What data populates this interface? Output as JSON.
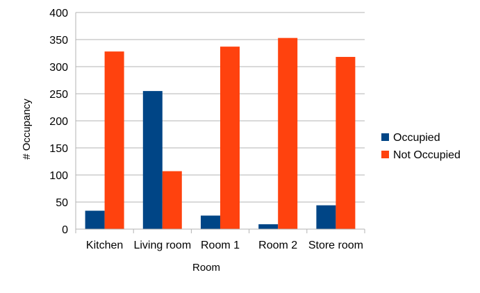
{
  "chart_data": {
    "type": "bar",
    "categories": [
      "Kitchen",
      "Living room",
      "Room 1",
      "Room 2",
      "Store room"
    ],
    "series": [
      {
        "name": "Occupied",
        "color": "#004586",
        "values": [
          34,
          255,
          25,
          9,
          44
        ]
      },
      {
        "name": "Not Occupied",
        "color": "#ff420e",
        "values": [
          328,
          107,
          337,
          353,
          318
        ]
      }
    ],
    "xlabel": "Room",
    "ylabel": "# Occupancy",
    "ylim": [
      0,
      400
    ],
    "yticks": [
      0,
      50,
      100,
      150,
      200,
      250,
      300,
      350,
      400
    ],
    "grid": true,
    "legend_position": "right"
  }
}
